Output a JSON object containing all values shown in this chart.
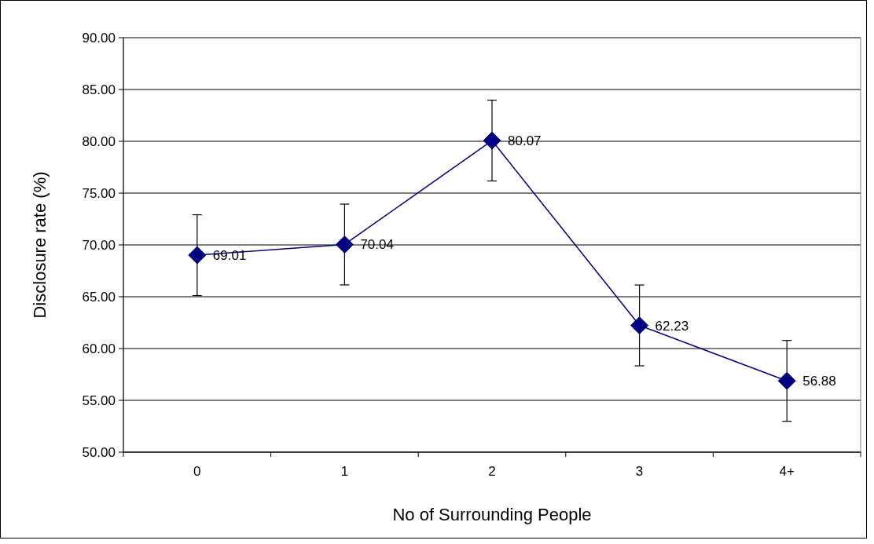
{
  "chart_data": {
    "type": "line",
    "xlabel": "No of Surrounding People",
    "ylabel": "Disclosure rate (%)",
    "categories": [
      "0",
      "1",
      "2",
      "3",
      "4+"
    ],
    "series": [
      {
        "color": "#000080",
        "values": [
          69.01,
          70.04,
          80.07,
          62.23,
          56.88
        ],
        "errors": [
          3.9,
          3.9,
          3.9,
          3.9,
          3.9
        ]
      }
    ],
    "ylim": [
      50,
      90
    ],
    "yticks": [
      {
        "value": 50,
        "label": "50.00"
      },
      {
        "value": 55,
        "label": "55.00"
      },
      {
        "value": 60,
        "label": "60.00"
      },
      {
        "value": 65,
        "label": "65.00"
      },
      {
        "value": 70,
        "label": "70.00"
      },
      {
        "value": 75,
        "label": "75.00"
      },
      {
        "value": 80,
        "label": "80.00"
      },
      {
        "value": 85,
        "label": "85.00"
      },
      {
        "value": 90,
        "label": "90.00"
      }
    ],
    "grid": "y",
    "marker": "diamond",
    "line_style": "solid",
    "data_labels": true
  }
}
